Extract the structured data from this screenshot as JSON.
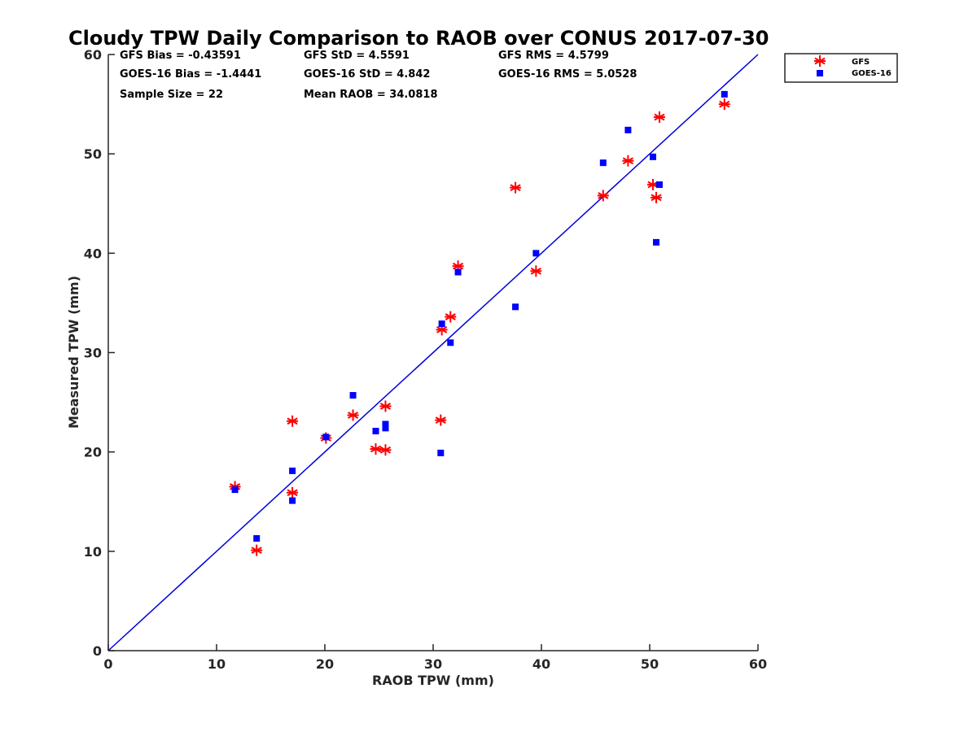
{
  "chart_data": {
    "type": "scatter",
    "title": "Cloudy TPW Daily Comparison to RAOB over CONUS 2017-07-30",
    "xlabel": "RAOB TPW (mm)",
    "ylabel": "Measured TPW (mm)",
    "xlim": [
      0,
      60
    ],
    "ylim": [
      0,
      60
    ],
    "xticks": [
      0,
      10,
      20,
      30,
      40,
      50,
      60
    ],
    "yticks": [
      0,
      10,
      20,
      30,
      40,
      50,
      60
    ],
    "grid": false,
    "legend_position": "top-right, outside plot",
    "reference_line": {
      "x": [
        0,
        60
      ],
      "y": [
        0,
        60
      ],
      "color": "#0000dd"
    },
    "stats": [
      "GFS Bias = -0.43591",
      "GFS StD = 4.5591",
      "GFS RMS = 4.5799",
      "GOES-16 Bias = -1.4441",
      "GOES-16 StD = 4.842",
      "GOES-16 RMS = 5.0528",
      "Sample Size = 22",
      "Mean RAOB = 34.0818"
    ],
    "series": [
      {
        "name": "GFS",
        "marker": "asterisk",
        "color": "#ff0000",
        "points": [
          [
            11.7,
            16.5
          ],
          [
            13.7,
            10.1
          ],
          [
            17.0,
            23.1
          ],
          [
            17.0,
            15.9
          ],
          [
            20.1,
            21.4
          ],
          [
            22.6,
            23.7
          ],
          [
            24.7,
            20.3
          ],
          [
            25.6,
            20.2
          ],
          [
            25.6,
            24.6
          ],
          [
            30.7,
            23.2
          ],
          [
            30.8,
            32.3
          ],
          [
            31.6,
            33.6
          ],
          [
            32.3,
            38.7
          ],
          [
            37.6,
            46.6
          ],
          [
            39.5,
            38.2
          ],
          [
            45.7,
            45.8
          ],
          [
            48.0,
            49.3
          ],
          [
            50.3,
            46.9
          ],
          [
            50.6,
            45.6
          ],
          [
            50.9,
            53.7
          ],
          [
            56.9,
            55.0
          ]
        ]
      },
      {
        "name": "GOES-16",
        "marker": "square",
        "color": "#0000ff",
        "points": [
          [
            11.7,
            16.2
          ],
          [
            13.7,
            11.3
          ],
          [
            17.0,
            18.1
          ],
          [
            17.0,
            15.1
          ],
          [
            20.1,
            21.5
          ],
          [
            22.6,
            25.7
          ],
          [
            24.7,
            22.1
          ],
          [
            25.6,
            22.4
          ],
          [
            25.6,
            22.8
          ],
          [
            30.7,
            19.9
          ],
          [
            30.8,
            32.9
          ],
          [
            31.6,
            31.0
          ],
          [
            32.3,
            38.1
          ],
          [
            37.6,
            34.6
          ],
          [
            39.5,
            40.0
          ],
          [
            45.7,
            49.1
          ],
          [
            48.0,
            52.4
          ],
          [
            50.3,
            49.7
          ],
          [
            50.6,
            41.1
          ],
          [
            50.9,
            46.9
          ],
          [
            56.9,
            56.0
          ]
        ]
      }
    ]
  }
}
